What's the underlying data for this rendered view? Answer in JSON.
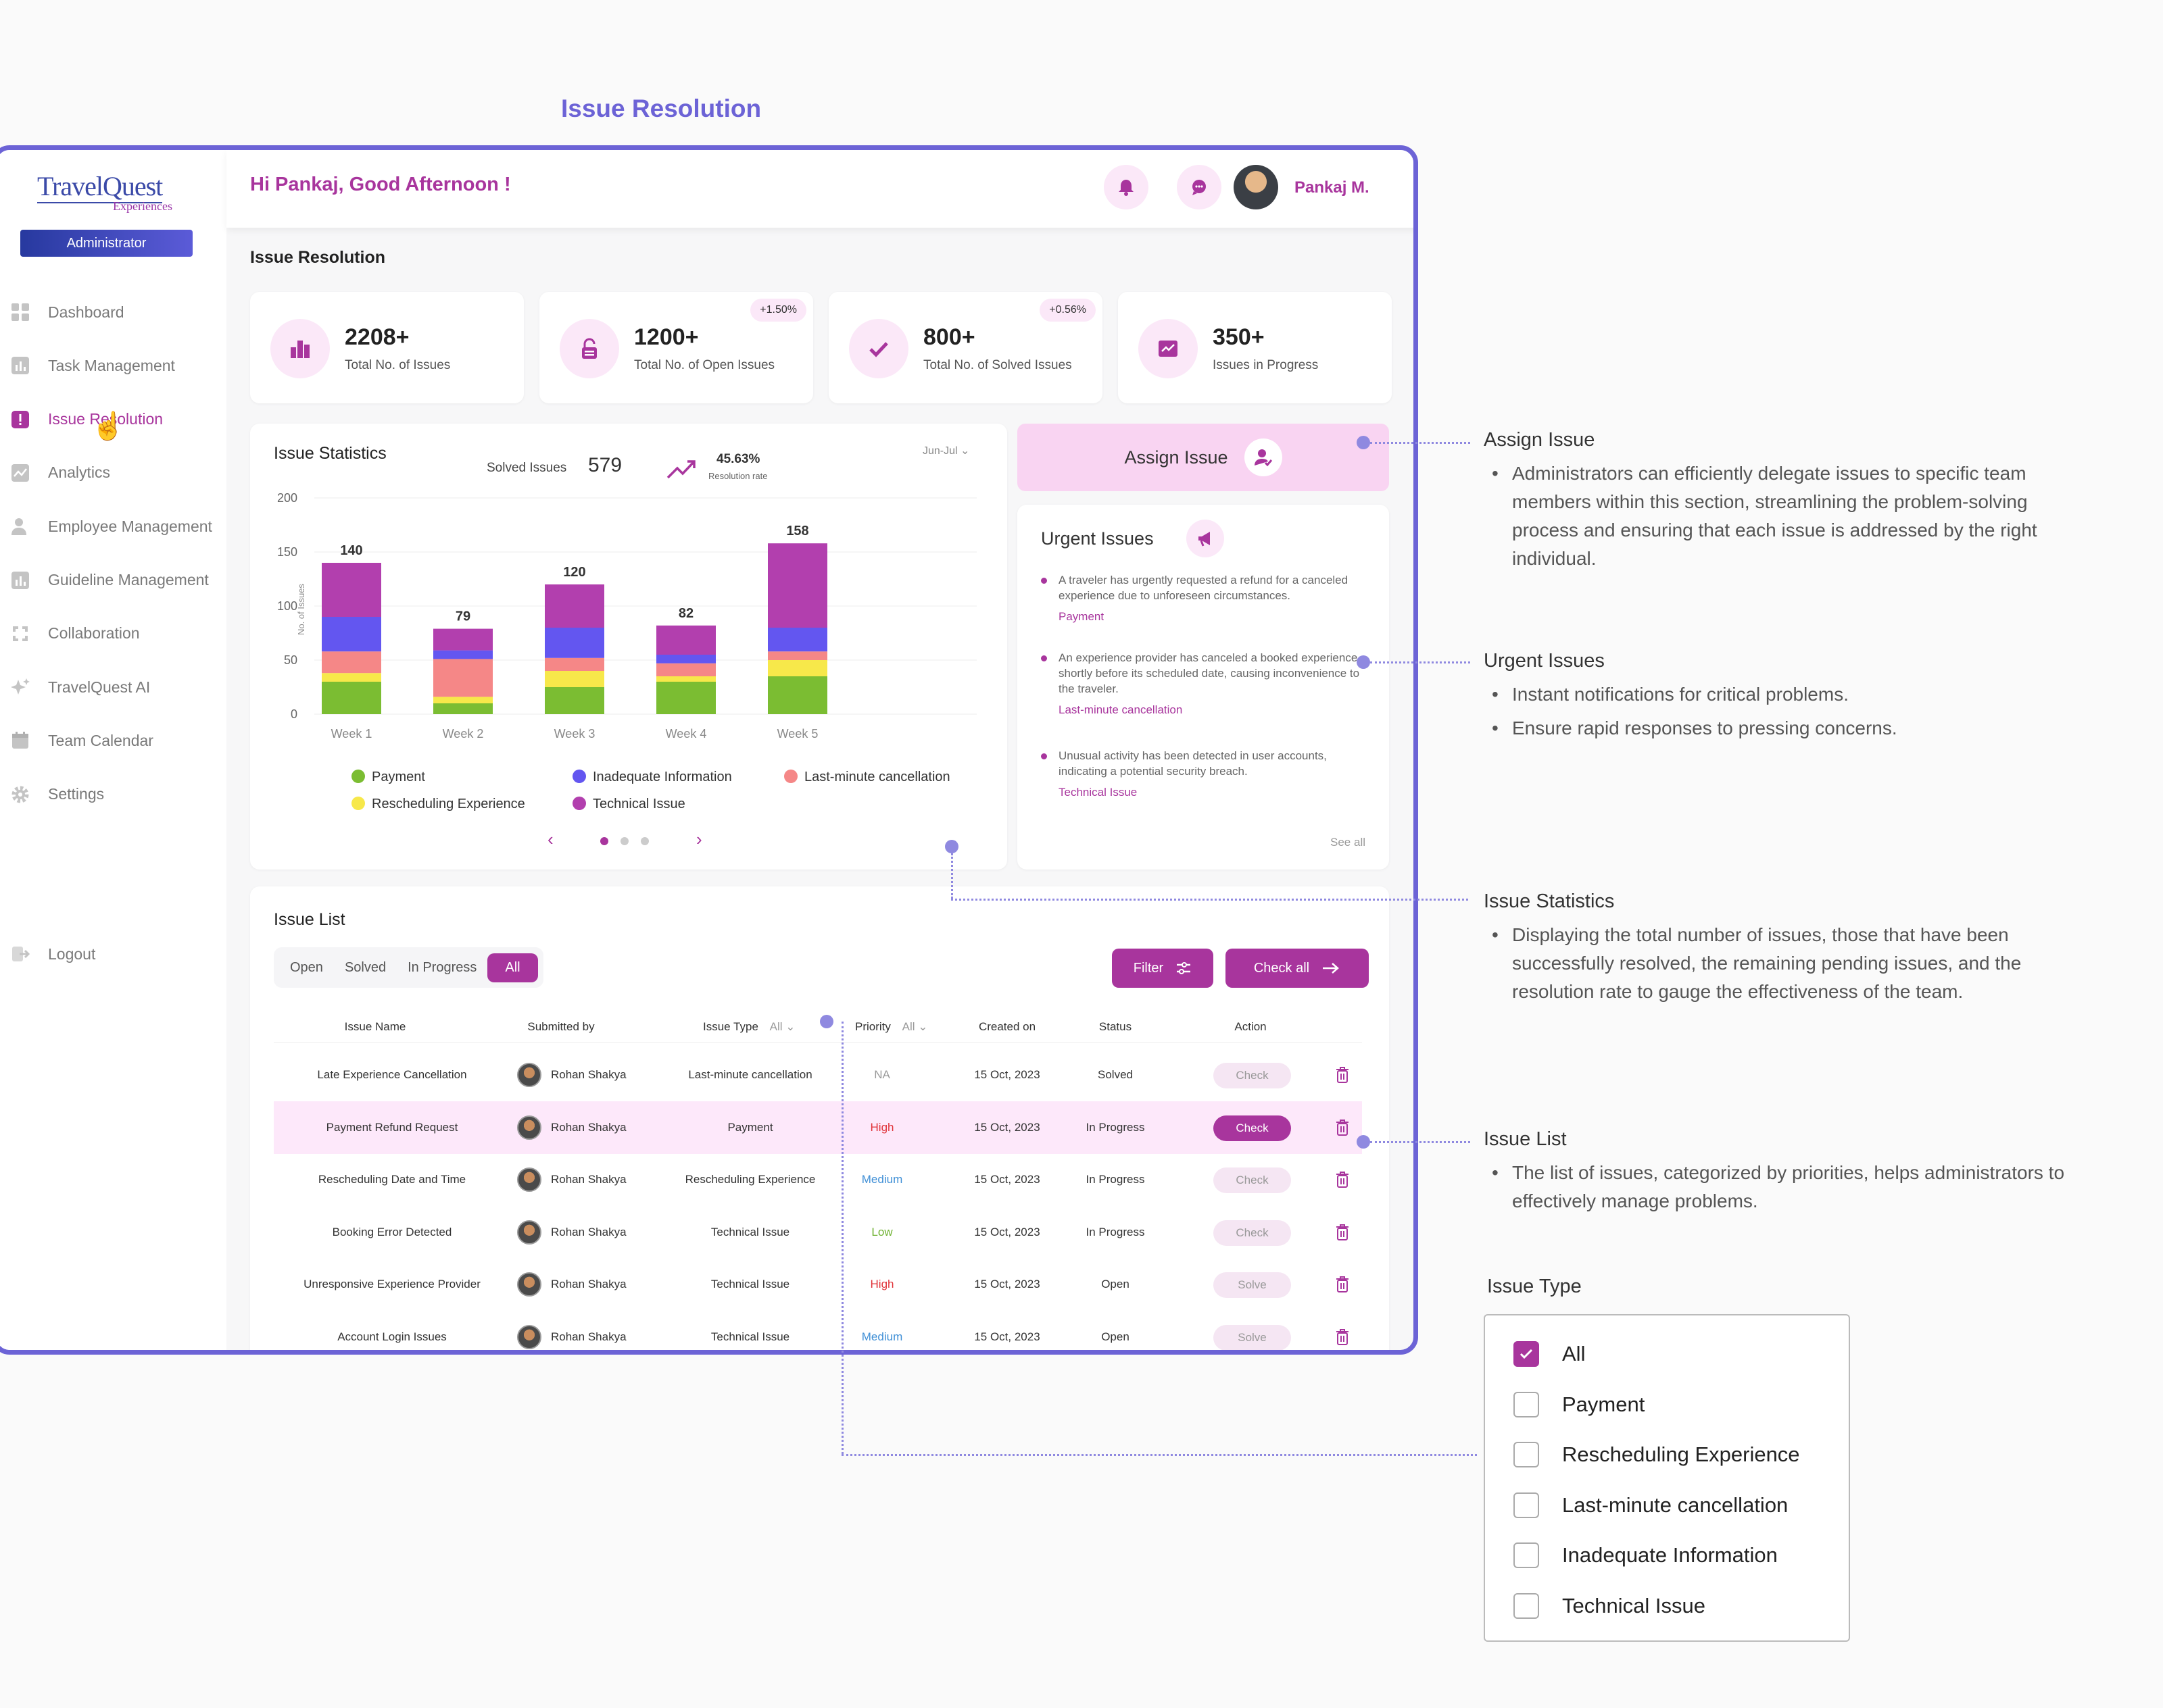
{
  "page_title": "Issue Resolution",
  "brand": {
    "name": "TravelQuest",
    "sub": "Experiences",
    "role": "Administrator"
  },
  "nav": [
    {
      "label": "Dashboard",
      "icon": "dashboard-icon"
    },
    {
      "label": "Task Management",
      "icon": "chart-icon"
    },
    {
      "label": "Issue Resolution",
      "icon": "alert-icon",
      "active": true
    },
    {
      "label": "Analytics",
      "icon": "analytics-icon"
    },
    {
      "label": "Employee Management",
      "icon": "user-icon"
    },
    {
      "label": "Guideline Management",
      "icon": "chart-icon"
    },
    {
      "label": "Collaboration",
      "icon": "collaboration-icon"
    },
    {
      "label": "TravelQuest AI",
      "icon": "sparkle-icon"
    },
    {
      "label": "Team Calendar",
      "icon": "calendar-icon"
    },
    {
      "label": "Settings",
      "icon": "gear-icon"
    }
  ],
  "logout": "Logout",
  "header": {
    "greeting": "Hi Pankaj, Good Afternoon !",
    "user": "Pankaj M."
  },
  "section_title": "Issue Resolution",
  "stats": [
    {
      "value": "2208+",
      "label": "Total No. of Issues",
      "badge": ""
    },
    {
      "value": "1200+",
      "label": "Total No. of Open Issues",
      "badge": "+1.50%"
    },
    {
      "value": "800+",
      "label": "Total No. of Solved Issues",
      "badge": "+0.56%"
    },
    {
      "value": "350+",
      "label": "Issues in Progress",
      "badge": ""
    }
  ],
  "issue_statistics": {
    "title": "Issue Statistics",
    "solved_label": "Solved Issues",
    "solved_value": "579",
    "rate": "45.63%",
    "rate_label": "Resolution rate",
    "period": "Jun-Jul"
  },
  "chart_data": {
    "type": "bar",
    "stacked": true,
    "categories": [
      "Week 1",
      "Week 2",
      "Week 3",
      "Week 4",
      "Week 5"
    ],
    "totals": [
      140,
      79,
      120,
      82,
      158
    ],
    "ylabel": "No. of Issues",
    "ylim": [
      0,
      200
    ],
    "yticks": [
      0,
      50,
      100,
      150,
      200
    ],
    "series": [
      {
        "name": "Payment",
        "color": "#7bbd32",
        "values": [
          30,
          10,
          25,
          30,
          35
        ]
      },
      {
        "name": "Rescheduling Experience",
        "color": "#f7e84a",
        "values": [
          8,
          6,
          15,
          5,
          15
        ]
      },
      {
        "name": "Last-minute cancellation",
        "color": "#f58787",
        "values": [
          20,
          35,
          12,
          12,
          8
        ]
      },
      {
        "name": "Inadequate Information",
        "color": "#6356f0",
        "values": [
          32,
          8,
          28,
          8,
          22
        ]
      },
      {
        "name": "Technical Issue",
        "color": "#b23fae",
        "values": [
          50,
          20,
          40,
          27,
          78
        ]
      }
    ],
    "legend_position": "bottom"
  },
  "assign": {
    "label": "Assign Issue"
  },
  "urgent": {
    "title": "Urgent Issues",
    "items": [
      {
        "text": "A traveler has urgently requested a refund for a canceled experience due to unforeseen circumstances.",
        "tag": "Payment"
      },
      {
        "text": "An experience provider has canceled a booked experience shortly before its scheduled date, causing inconvenience to the traveler.",
        "tag": "Last-minute cancellation"
      },
      {
        "text": "Unusual activity has been detected in user accounts, indicating a potential security breach.",
        "tag": "Technical Issue"
      }
    ],
    "see_all": "See all"
  },
  "issue_list": {
    "title": "Issue List",
    "tabs": [
      "Open",
      "Solved",
      "In Progress",
      "All"
    ],
    "filter": "Filter",
    "check_all": "Check all",
    "headers": {
      "name": "Issue Name",
      "by": "Submitted by",
      "type": "Issue Type",
      "type_filter": "All",
      "priority": "Priority",
      "priority_filter": "All",
      "created": "Created on",
      "status": "Status",
      "action": "Action"
    },
    "rows": [
      {
        "name": "Late Experience Cancellation",
        "by": "Rohan Shakya",
        "type": "Last-minute cancellation",
        "priority": "NA",
        "pcolor": "#999999",
        "created": "15 Oct, 2023",
        "status": "Solved",
        "action": "Check",
        "active": false
      },
      {
        "name": "Payment Refund Request",
        "by": "Rohan Shakya",
        "type": "Payment",
        "priority": "High",
        "pcolor": "#e0343a",
        "created": "15 Oct, 2023",
        "status": "In Progress",
        "action": "Check",
        "active": true
      },
      {
        "name": "Rescheduling Date and Time",
        "by": "Rohan Shakya",
        "type": "Rescheduling Experience",
        "priority": "Medium",
        "pcolor": "#3f8fd6",
        "created": "15 Oct, 2023",
        "status": "In Progress",
        "action": "Check",
        "active": false
      },
      {
        "name": "Booking Error Detected",
        "by": "Rohan Shakya",
        "type": "Technical Issue",
        "priority": "Low",
        "pcolor": "#6cb02e",
        "created": "15 Oct, 2023",
        "status": "In Progress",
        "action": "Check",
        "active": false
      },
      {
        "name": "Unresponsive Experience Provider",
        "by": "Rohan Shakya",
        "type": "Technical Issue",
        "priority": "High",
        "pcolor": "#e0343a",
        "created": "15 Oct, 2023",
        "status": "Open",
        "action": "Solve",
        "active": false
      },
      {
        "name": "Account Login Issues",
        "by": "Rohan Shakya",
        "type": "Technical Issue",
        "priority": "Medium",
        "pcolor": "#3f8fd6",
        "created": "15 Oct, 2023",
        "status": "Open",
        "action": "Solve",
        "active": false
      }
    ]
  },
  "annotations": [
    {
      "title": "Assign Issue",
      "bullets": [
        "Administrators can efficiently delegate issues to specific team members within this section, streamlining the problem-solving process and ensuring that each issue is addressed by the right individual."
      ]
    },
    {
      "title": "Urgent Issues",
      "bullets": [
        "Instant notifications for critical problems.",
        "Ensure rapid responses to pressing concerns."
      ]
    },
    {
      "title": "Issue Statistics",
      "bullets": [
        "Displaying the total number of issues, those that have been successfully resolved, the remaining pending issues, and the resolution rate to gauge the effectiveness of the team."
      ]
    },
    {
      "title": "Issue List",
      "bullets": [
        "The list of issues, categorized by priorities, helps administrators to effectively manage problems."
      ]
    }
  ],
  "issue_type_dropdown": {
    "title": "Issue Type",
    "options": [
      {
        "label": "All",
        "checked": true
      },
      {
        "label": "Payment",
        "checked": false
      },
      {
        "label": "Rescheduling Experience",
        "checked": false
      },
      {
        "label": "Last-minute cancellation",
        "checked": false
      },
      {
        "label": "Inadequate Information",
        "checked": false
      },
      {
        "label": "Technical Issue",
        "checked": false
      }
    ]
  },
  "colors": {
    "accent": "#a8359d",
    "frame": "#6c63d6"
  }
}
